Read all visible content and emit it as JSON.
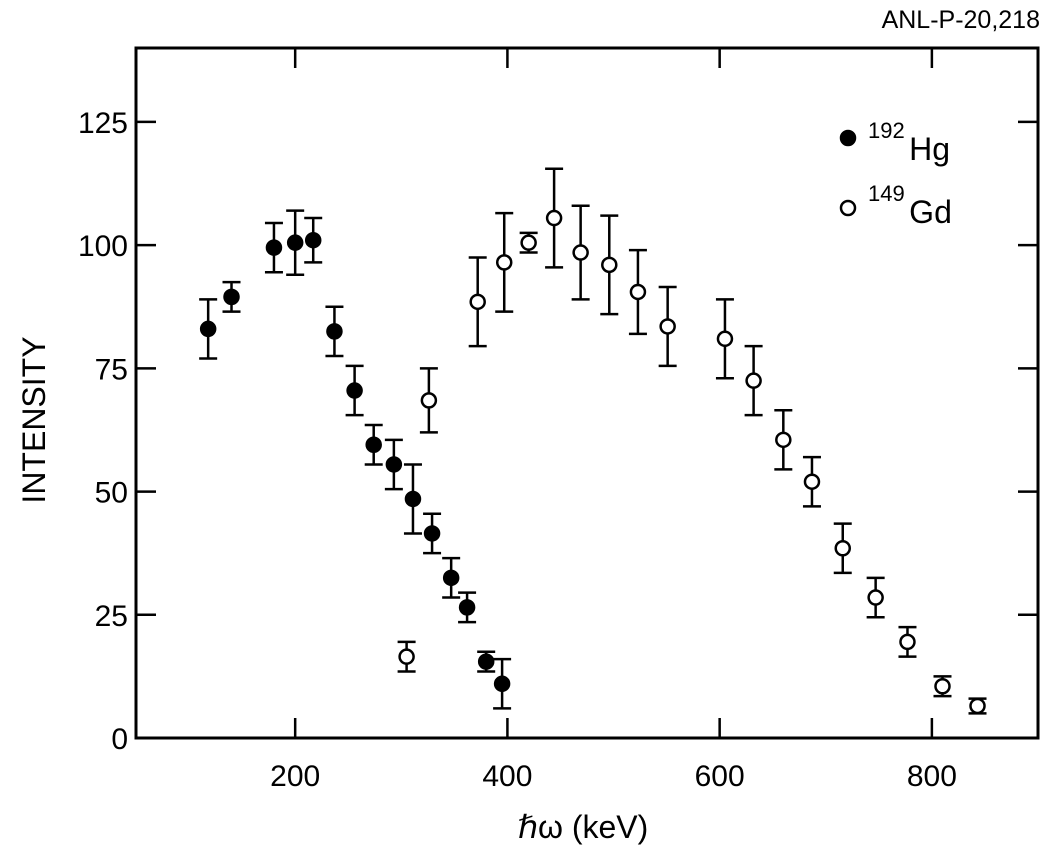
{
  "report_id": "ANL-P-20,218",
  "chart_data": {
    "type": "scatter",
    "xlabel": "ℏω (keV)",
    "ylabel": "INTENSITY",
    "xlim": [
      50,
      900
    ],
    "ylim": [
      0,
      140
    ],
    "x_ticks": [
      200,
      400,
      600,
      800
    ],
    "y_ticks": [
      0,
      25,
      50,
      75,
      100,
      125
    ],
    "legend_position": "top-right",
    "series": [
      {
        "name_mass": "192",
        "name_symbol": "Hg",
        "marker": "filled-circle",
        "points": [
          {
            "x": 118,
            "y": 83,
            "err": 6
          },
          {
            "x": 140,
            "y": 89.5,
            "err": 3
          },
          {
            "x": 180,
            "y": 99.5,
            "err": 5
          },
          {
            "x": 200,
            "y": 100.5,
            "err": 6.5
          },
          {
            "x": 217,
            "y": 101,
            "err": 4.5
          },
          {
            "x": 237,
            "y": 82.5,
            "err": 5
          },
          {
            "x": 256,
            "y": 70.5,
            "err": 5
          },
          {
            "x": 274,
            "y": 59.5,
            "err": 4
          },
          {
            "x": 293,
            "y": 55.5,
            "err": 5
          },
          {
            "x": 311,
            "y": 48.5,
            "err": 7
          },
          {
            "x": 329,
            "y": 41.5,
            "err": 4
          },
          {
            "x": 347,
            "y": 32.5,
            "err": 4
          },
          {
            "x": 362,
            "y": 26.5,
            "err": 3
          },
          {
            "x": 380,
            "y": 15.5,
            "err": 2
          },
          {
            "x": 395,
            "y": 11,
            "err": 5
          }
        ]
      },
      {
        "name_mass": "149",
        "name_symbol": "Gd",
        "marker": "open-circle",
        "points": [
          {
            "x": 305,
            "y": 16.5,
            "err": 3
          },
          {
            "x": 326,
            "y": 68.5,
            "err": 6.5
          },
          {
            "x": 372,
            "y": 88.5,
            "err": 9
          },
          {
            "x": 397,
            "y": 96.5,
            "err": 10
          },
          {
            "x": 420,
            "y": 100.5,
            "err": 2
          },
          {
            "x": 444,
            "y": 105.5,
            "err": 10
          },
          {
            "x": 469,
            "y": 98.5,
            "err": 9.5
          },
          {
            "x": 496,
            "y": 96,
            "err": 10
          },
          {
            "x": 523,
            "y": 90.5,
            "err": 8.5
          },
          {
            "x": 551,
            "y": 83.5,
            "err": 8
          },
          {
            "x": 605,
            "y": 81,
            "err": 8
          },
          {
            "x": 632,
            "y": 72.5,
            "err": 7
          },
          {
            "x": 660,
            "y": 60.5,
            "err": 6
          },
          {
            "x": 687,
            "y": 52,
            "err": 5
          },
          {
            "x": 716,
            "y": 38.5,
            "err": 5
          },
          {
            "x": 747,
            "y": 28.5,
            "err": 4
          },
          {
            "x": 777,
            "y": 19.5,
            "err": 3
          },
          {
            "x": 810,
            "y": 10.5,
            "err": 2
          },
          {
            "x": 843,
            "y": 6.5,
            "err": 1.5
          }
        ]
      }
    ]
  }
}
